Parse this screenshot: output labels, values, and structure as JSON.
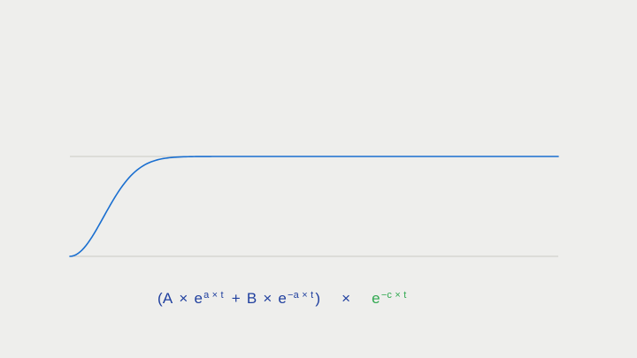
{
  "diagram": {
    "curve_color": "#1a6fd0",
    "guide_color": "#c9c9c5",
    "damping_color": "#2fa84f",
    "formula_color": "#1f3f9e"
  },
  "formula": {
    "open_paren": "(",
    "A": "A",
    "times1": "×",
    "e1": "e",
    "exp1": "a × t",
    "plus": "+",
    "B": "B",
    "times2": "×",
    "e2": "e",
    "exp2": "−a × t",
    "close_paren": ")",
    "times3": "×",
    "e3": "e",
    "exp3": "−c × t"
  }
}
